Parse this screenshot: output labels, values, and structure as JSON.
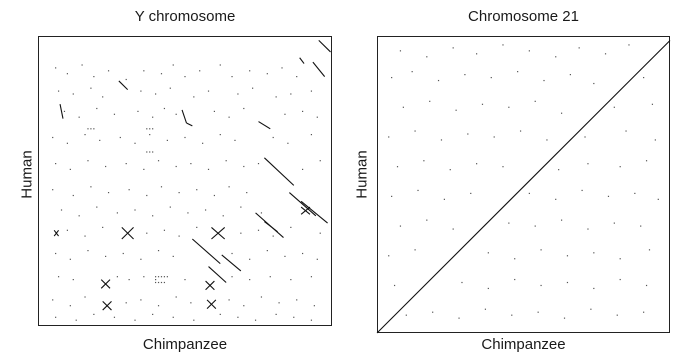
{
  "chart_data": [
    {
      "type": "scatter",
      "title": "Y chromosome",
      "xlabel": "Chimpanzee",
      "ylabel": "Human",
      "xlim": [
        0,
        1
      ],
      "ylim": [
        0,
        1
      ],
      "grid": false,
      "segments": [
        [
          0.955,
          0.985,
          0.995,
          0.945
        ],
        [
          0.89,
          0.925,
          0.905,
          0.905
        ],
        [
          0.935,
          0.91,
          0.975,
          0.86
        ],
        [
          0.75,
          0.705,
          0.79,
          0.68
        ],
        [
          0.77,
          0.58,
          0.87,
          0.485
        ],
        [
          0.74,
          0.39,
          0.835,
          0.305
        ],
        [
          0.855,
          0.46,
          0.945,
          0.38
        ],
        [
          0.895,
          0.43,
          0.985,
          0.355
        ],
        [
          0.77,
          0.36,
          0.815,
          0.325
        ],
        [
          0.525,
          0.3,
          0.62,
          0.215
        ],
        [
          0.625,
          0.245,
          0.69,
          0.19
        ],
        [
          0.58,
          0.205,
          0.64,
          0.15
        ],
        [
          0.275,
          0.845,
          0.305,
          0.815
        ],
        [
          0.075,
          0.765,
          0.085,
          0.715
        ],
        [
          0.285,
          0.34,
          0.325,
          0.3
        ],
        [
          0.285,
          0.3,
          0.325,
          0.34
        ],
        [
          0.59,
          0.34,
          0.635,
          0.3
        ],
        [
          0.59,
          0.3,
          0.635,
          0.34
        ],
        [
          0.895,
          0.41,
          0.925,
          0.385
        ],
        [
          0.895,
          0.385,
          0.925,
          0.41
        ],
        [
          0.055,
          0.33,
          0.07,
          0.31
        ],
        [
          0.055,
          0.31,
          0.07,
          0.33
        ],
        [
          0.215,
          0.16,
          0.245,
          0.13
        ],
        [
          0.215,
          0.13,
          0.245,
          0.16
        ],
        [
          0.22,
          0.085,
          0.25,
          0.055
        ],
        [
          0.22,
          0.055,
          0.25,
          0.085
        ],
        [
          0.57,
          0.155,
          0.6,
          0.125
        ],
        [
          0.57,
          0.125,
          0.6,
          0.155
        ],
        [
          0.575,
          0.09,
          0.605,
          0.06
        ],
        [
          0.575,
          0.06,
          0.605,
          0.09
        ],
        [
          0.49,
          0.745,
          0.505,
          0.7
        ],
        [
          0.505,
          0.7,
          0.525,
          0.69
        ]
      ],
      "dots": [
        [
          0.06,
          0.89
        ],
        [
          0.1,
          0.87
        ],
        [
          0.15,
          0.9
        ],
        [
          0.19,
          0.86
        ],
        [
          0.24,
          0.88
        ],
        [
          0.3,
          0.85
        ],
        [
          0.36,
          0.88
        ],
        [
          0.42,
          0.87
        ],
        [
          0.46,
          0.9
        ],
        [
          0.5,
          0.86
        ],
        [
          0.55,
          0.88
        ],
        [
          0.62,
          0.9
        ],
        [
          0.66,
          0.86
        ],
        [
          0.72,
          0.88
        ],
        [
          0.78,
          0.87
        ],
        [
          0.83,
          0.89
        ],
        [
          0.88,
          0.86
        ],
        [
          0.07,
          0.81
        ],
        [
          0.12,
          0.8
        ],
        [
          0.18,
          0.82
        ],
        [
          0.22,
          0.79
        ],
        [
          0.35,
          0.81
        ],
        [
          0.4,
          0.8
        ],
        [
          0.45,
          0.82
        ],
        [
          0.53,
          0.79
        ],
        [
          0.58,
          0.81
        ],
        [
          0.68,
          0.8
        ],
        [
          0.73,
          0.82
        ],
        [
          0.81,
          0.79
        ],
        [
          0.86,
          0.8
        ],
        [
          0.93,
          0.81
        ],
        [
          0.09,
          0.74
        ],
        [
          0.14,
          0.72
        ],
        [
          0.2,
          0.75
        ],
        [
          0.26,
          0.73
        ],
        [
          0.34,
          0.74
        ],
        [
          0.39,
          0.72
        ],
        [
          0.43,
          0.75
        ],
        [
          0.47,
          0.73
        ],
        [
          0.6,
          0.74
        ],
        [
          0.65,
          0.72
        ],
        [
          0.7,
          0.75
        ],
        [
          0.84,
          0.73
        ],
        [
          0.9,
          0.74
        ],
        [
          0.95,
          0.72
        ],
        [
          0.05,
          0.65
        ],
        [
          0.1,
          0.63
        ],
        [
          0.16,
          0.66
        ],
        [
          0.21,
          0.64
        ],
        [
          0.28,
          0.65
        ],
        [
          0.33,
          0.63
        ],
        [
          0.38,
          0.66
        ],
        [
          0.44,
          0.64
        ],
        [
          0.5,
          0.65
        ],
        [
          0.56,
          0.63
        ],
        [
          0.62,
          0.66
        ],
        [
          0.67,
          0.64
        ],
        [
          0.8,
          0.65
        ],
        [
          0.85,
          0.63
        ],
        [
          0.93,
          0.66
        ],
        [
          0.06,
          0.56
        ],
        [
          0.11,
          0.54
        ],
        [
          0.17,
          0.57
        ],
        [
          0.23,
          0.55
        ],
        [
          0.3,
          0.56
        ],
        [
          0.36,
          0.54
        ],
        [
          0.41,
          0.57
        ],
        [
          0.47,
          0.55
        ],
        [
          0.52,
          0.56
        ],
        [
          0.58,
          0.54
        ],
        [
          0.64,
          0.57
        ],
        [
          0.7,
          0.55
        ],
        [
          0.75,
          0.56
        ],
        [
          0.9,
          0.54
        ],
        [
          0.96,
          0.57
        ],
        [
          0.05,
          0.47
        ],
        [
          0.12,
          0.45
        ],
        [
          0.18,
          0.48
        ],
        [
          0.24,
          0.46
        ],
        [
          0.31,
          0.47
        ],
        [
          0.37,
          0.45
        ],
        [
          0.42,
          0.48
        ],
        [
          0.48,
          0.46
        ],
        [
          0.54,
          0.47
        ],
        [
          0.6,
          0.45
        ],
        [
          0.65,
          0.48
        ],
        [
          0.71,
          0.46
        ],
        [
          0.08,
          0.4
        ],
        [
          0.14,
          0.38
        ],
        [
          0.2,
          0.41
        ],
        [
          0.27,
          0.39
        ],
        [
          0.33,
          0.4
        ],
        [
          0.39,
          0.38
        ],
        [
          0.45,
          0.41
        ],
        [
          0.51,
          0.39
        ],
        [
          0.57,
          0.4
        ],
        [
          0.63,
          0.38
        ],
        [
          0.69,
          0.41
        ],
        [
          0.76,
          0.39
        ],
        [
          0.1,
          0.33
        ],
        [
          0.16,
          0.31
        ],
        [
          0.22,
          0.34
        ],
        [
          0.37,
          0.32
        ],
        [
          0.43,
          0.33
        ],
        [
          0.48,
          0.31
        ],
        [
          0.54,
          0.34
        ],
        [
          0.69,
          0.32
        ],
        [
          0.75,
          0.33
        ],
        [
          0.8,
          0.31
        ],
        [
          0.86,
          0.34
        ],
        [
          0.96,
          0.32
        ],
        [
          0.06,
          0.25
        ],
        [
          0.11,
          0.23
        ],
        [
          0.17,
          0.26
        ],
        [
          0.23,
          0.24
        ],
        [
          0.29,
          0.25
        ],
        [
          0.35,
          0.23
        ],
        [
          0.41,
          0.26
        ],
        [
          0.46,
          0.24
        ],
        [
          0.66,
          0.25
        ],
        [
          0.72,
          0.23
        ],
        [
          0.78,
          0.26
        ],
        [
          0.84,
          0.24
        ],
        [
          0.9,
          0.25
        ],
        [
          0.95,
          0.23
        ],
        [
          0.07,
          0.17
        ],
        [
          0.12,
          0.16
        ],
        [
          0.27,
          0.17
        ],
        [
          0.31,
          0.16
        ],
        [
          0.36,
          0.17
        ],
        [
          0.4,
          0.16
        ],
        [
          0.44,
          0.17
        ],
        [
          0.5,
          0.16
        ],
        [
          0.66,
          0.17
        ],
        [
          0.72,
          0.16
        ],
        [
          0.79,
          0.17
        ],
        [
          0.86,
          0.16
        ],
        [
          0.93,
          0.17
        ],
        [
          0.05,
          0.09
        ],
        [
          0.11,
          0.07
        ],
        [
          0.16,
          0.1
        ],
        [
          0.3,
          0.08
        ],
        [
          0.35,
          0.09
        ],
        [
          0.41,
          0.07
        ],
        [
          0.47,
          0.1
        ],
        [
          0.52,
          0.08
        ],
        [
          0.65,
          0.09
        ],
        [
          0.7,
          0.07
        ],
        [
          0.76,
          0.1
        ],
        [
          0.82,
          0.08
        ],
        [
          0.88,
          0.09
        ],
        [
          0.94,
          0.07
        ],
        [
          0.06,
          0.03
        ],
        [
          0.13,
          0.02
        ],
        [
          0.19,
          0.04
        ],
        [
          0.26,
          0.03
        ],
        [
          0.33,
          0.02
        ],
        [
          0.39,
          0.04
        ],
        [
          0.46,
          0.03
        ],
        [
          0.53,
          0.02
        ],
        [
          0.62,
          0.04
        ],
        [
          0.68,
          0.03
        ],
        [
          0.74,
          0.02
        ],
        [
          0.81,
          0.04
        ],
        [
          0.87,
          0.03
        ],
        [
          0.93,
          0.02
        ],
        [
          0.4,
          0.17
        ],
        [
          0.41,
          0.17
        ],
        [
          0.42,
          0.17
        ],
        [
          0.43,
          0.17
        ],
        [
          0.4,
          0.15
        ],
        [
          0.41,
          0.15
        ],
        [
          0.42,
          0.15
        ],
        [
          0.43,
          0.15
        ],
        [
          0.17,
          0.68
        ],
        [
          0.18,
          0.68
        ],
        [
          0.19,
          0.68
        ],
        [
          0.37,
          0.68
        ],
        [
          0.38,
          0.68
        ],
        [
          0.39,
          0.68
        ],
        [
          0.37,
          0.6
        ],
        [
          0.38,
          0.6
        ],
        [
          0.39,
          0.6
        ]
      ]
    },
    {
      "type": "scatter",
      "title": "Chromosome 21",
      "xlabel": "Chimpanzee",
      "ylabel": "Human",
      "xlim": [
        0,
        1
      ],
      "ylim": [
        0,
        1
      ],
      "grid": false,
      "segments": [
        [
          0.0,
          0.0,
          1.0,
          0.985
        ]
      ],
      "dots": [
        [
          0.08,
          0.95
        ],
        [
          0.17,
          0.93
        ],
        [
          0.26,
          0.96
        ],
        [
          0.34,
          0.94
        ],
        [
          0.43,
          0.97
        ],
        [
          0.52,
          0.95
        ],
        [
          0.61,
          0.93
        ],
        [
          0.69,
          0.96
        ],
        [
          0.78,
          0.94
        ],
        [
          0.86,
          0.97
        ],
        [
          0.05,
          0.86
        ],
        [
          0.12,
          0.88
        ],
        [
          0.21,
          0.85
        ],
        [
          0.3,
          0.87
        ],
        [
          0.39,
          0.86
        ],
        [
          0.48,
          0.88
        ],
        [
          0.57,
          0.85
        ],
        [
          0.66,
          0.87
        ],
        [
          0.74,
          0.84
        ],
        [
          0.91,
          0.86
        ],
        [
          0.09,
          0.76
        ],
        [
          0.18,
          0.78
        ],
        [
          0.27,
          0.75
        ],
        [
          0.36,
          0.77
        ],
        [
          0.45,
          0.76
        ],
        [
          0.54,
          0.78
        ],
        [
          0.63,
          0.74
        ],
        [
          0.81,
          0.76
        ],
        [
          0.94,
          0.77
        ],
        [
          0.04,
          0.66
        ],
        [
          0.13,
          0.68
        ],
        [
          0.22,
          0.65
        ],
        [
          0.31,
          0.67
        ],
        [
          0.4,
          0.66
        ],
        [
          0.49,
          0.68
        ],
        [
          0.58,
          0.65
        ],
        [
          0.71,
          0.66
        ],
        [
          0.85,
          0.68
        ],
        [
          0.95,
          0.65
        ],
        [
          0.07,
          0.56
        ],
        [
          0.16,
          0.58
        ],
        [
          0.25,
          0.55
        ],
        [
          0.34,
          0.57
        ],
        [
          0.43,
          0.56
        ],
        [
          0.62,
          0.55
        ],
        [
          0.72,
          0.57
        ],
        [
          0.83,
          0.56
        ],
        [
          0.92,
          0.58
        ],
        [
          0.05,
          0.46
        ],
        [
          0.14,
          0.48
        ],
        [
          0.23,
          0.45
        ],
        [
          0.32,
          0.47
        ],
        [
          0.52,
          0.47
        ],
        [
          0.61,
          0.45
        ],
        [
          0.7,
          0.48
        ],
        [
          0.79,
          0.46
        ],
        [
          0.88,
          0.47
        ],
        [
          0.96,
          0.45
        ],
        [
          0.08,
          0.36
        ],
        [
          0.17,
          0.38
        ],
        [
          0.26,
          0.35
        ],
        [
          0.45,
          0.37
        ],
        [
          0.54,
          0.36
        ],
        [
          0.63,
          0.38
        ],
        [
          0.72,
          0.35
        ],
        [
          0.81,
          0.37
        ],
        [
          0.9,
          0.36
        ],
        [
          0.04,
          0.26
        ],
        [
          0.13,
          0.28
        ],
        [
          0.38,
          0.27
        ],
        [
          0.47,
          0.25
        ],
        [
          0.56,
          0.28
        ],
        [
          0.65,
          0.26
        ],
        [
          0.74,
          0.27
        ],
        [
          0.83,
          0.25
        ],
        [
          0.93,
          0.28
        ],
        [
          0.06,
          0.16
        ],
        [
          0.29,
          0.17
        ],
        [
          0.38,
          0.15
        ],
        [
          0.47,
          0.18
        ],
        [
          0.56,
          0.16
        ],
        [
          0.65,
          0.17
        ],
        [
          0.74,
          0.15
        ],
        [
          0.83,
          0.18
        ],
        [
          0.92,
          0.16
        ],
        [
          0.1,
          0.06
        ],
        [
          0.19,
          0.07
        ],
        [
          0.28,
          0.05
        ],
        [
          0.37,
          0.08
        ],
        [
          0.46,
          0.06
        ],
        [
          0.55,
          0.07
        ],
        [
          0.64,
          0.05
        ],
        [
          0.73,
          0.08
        ],
        [
          0.82,
          0.06
        ],
        [
          0.91,
          0.07
        ]
      ]
    }
  ]
}
